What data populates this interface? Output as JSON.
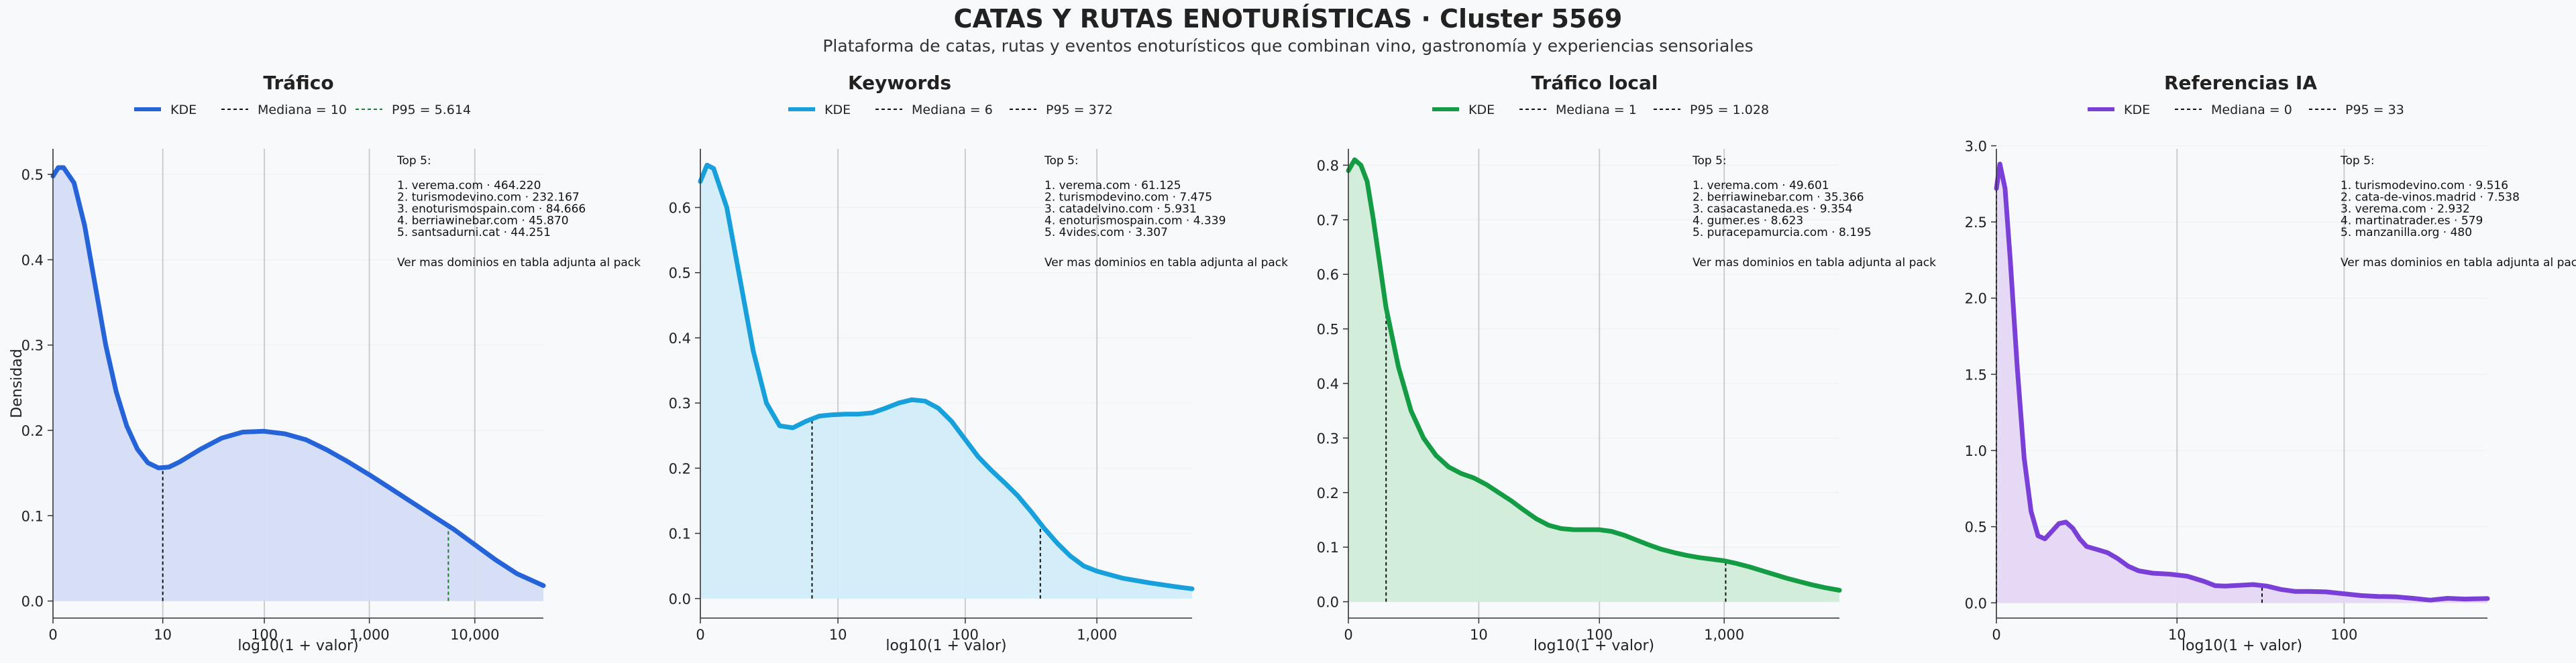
{
  "page": {
    "title": "CATAS Y RUTAS ENOTURÍSTICAS · Cluster 5569",
    "subtitle": "Plataforma de catas, rutas y eventos enoturísticos que combinan vino, gastronomía y experiencias sensoriales"
  },
  "shared": {
    "ylabel": "Densidad",
    "xlabel": "log10(1 + valor)",
    "kde_label": "KDE",
    "top_heading": "Top 5:",
    "top_footer": "Ver mas dominios en tabla adjunta al pack"
  },
  "chart_data": [
    {
      "type": "area",
      "title": "Tráfico",
      "color": "#2563d9",
      "fill": "#d5ddf6",
      "median_color": "#111111",
      "p95_color": "#1e7a2e",
      "legend": [
        "KDE",
        "Mediana = 10",
        "P95 = 5.614"
      ],
      "xlabel": "log10(1 + valor)",
      "ylabel": "Densidad",
      "xlim": [
        0,
        4.65
      ],
      "ylim": [
        -0.02,
        0.53
      ],
      "xticks": [
        0,
        1.041,
        2.004,
        3.0,
        4.0
      ],
      "xticklabels": [
        "0",
        "10",
        "100",
        "1,000",
        "10,000"
      ],
      "yticks": [
        0,
        0.1,
        0.2,
        0.3,
        0.4,
        0.5
      ],
      "yticklabels": [
        "0.0",
        "0.1",
        "0.2",
        "0.3",
        "0.4",
        "0.5"
      ],
      "median_x": 1.041,
      "p95_x": 3.749,
      "kde": [
        [
          0,
          0.498
        ],
        [
          0.05,
          0.508
        ],
        [
          0.1,
          0.508
        ],
        [
          0.2,
          0.49
        ],
        [
          0.3,
          0.44
        ],
        [
          0.4,
          0.37
        ],
        [
          0.5,
          0.3
        ],
        [
          0.6,
          0.245
        ],
        [
          0.7,
          0.205
        ],
        [
          0.8,
          0.178
        ],
        [
          0.9,
          0.162
        ],
        [
          1.0,
          0.156
        ],
        [
          1.1,
          0.157
        ],
        [
          1.2,
          0.163
        ],
        [
          1.4,
          0.178
        ],
        [
          1.6,
          0.191
        ],
        [
          1.8,
          0.198
        ],
        [
          2.0,
          0.199
        ],
        [
          2.2,
          0.196
        ],
        [
          2.4,
          0.189
        ],
        [
          2.6,
          0.177
        ],
        [
          2.8,
          0.163
        ],
        [
          3.0,
          0.148
        ],
        [
          3.2,
          0.132
        ],
        [
          3.4,
          0.116
        ],
        [
          3.6,
          0.1
        ],
        [
          3.8,
          0.084
        ],
        [
          4.0,
          0.066
        ],
        [
          4.2,
          0.048
        ],
        [
          4.4,
          0.032
        ],
        [
          4.65,
          0.018
        ]
      ],
      "top5": [
        "1. verema.com · 464.220",
        "2. turismodevino.com · 232.167",
        "3. enoturismospain.com · 84.666",
        "4. berriawinebar.com · 45.870",
        "5. santsadurni.cat · 44.251"
      ],
      "grid": "vertical"
    },
    {
      "type": "area",
      "title": "Keywords",
      "color": "#17a0db",
      "fill": "#d2edf9",
      "median_color": "#111111",
      "p95_color": "#111111",
      "legend": [
        "KDE",
        "Mediana = 6",
        "P95 = 372"
      ],
      "xlabel": "log10(1 + valor)",
      "ylabel": "",
      "xlim": [
        0,
        3.72
      ],
      "ylim": [
        -0.03,
        0.69
      ],
      "xticks": [
        0,
        1.041,
        2.004,
        3.0
      ],
      "xticklabels": [
        "0",
        "10",
        "100",
        "1,000"
      ],
      "yticks": [
        0,
        0.1,
        0.2,
        0.3,
        0.4,
        0.5,
        0.6
      ],
      "yticklabels": [
        "0.0",
        "0.1",
        "0.2",
        "0.3",
        "0.4",
        "0.5",
        "0.6"
      ],
      "median_x": 0.845,
      "p95_x": 2.572,
      "kde": [
        [
          0,
          0.64
        ],
        [
          0.05,
          0.665
        ],
        [
          0.1,
          0.66
        ],
        [
          0.2,
          0.6
        ],
        [
          0.3,
          0.49
        ],
        [
          0.4,
          0.38
        ],
        [
          0.5,
          0.3
        ],
        [
          0.6,
          0.265
        ],
        [
          0.7,
          0.262
        ],
        [
          0.8,
          0.272
        ],
        [
          0.9,
          0.28
        ],
        [
          1.0,
          0.282
        ],
        [
          1.1,
          0.283
        ],
        [
          1.2,
          0.283
        ],
        [
          1.3,
          0.285
        ],
        [
          1.4,
          0.292
        ],
        [
          1.5,
          0.3
        ],
        [
          1.6,
          0.305
        ],
        [
          1.7,
          0.303
        ],
        [
          1.8,
          0.292
        ],
        [
          1.9,
          0.272
        ],
        [
          2.0,
          0.245
        ],
        [
          2.1,
          0.218
        ],
        [
          2.2,
          0.197
        ],
        [
          2.3,
          0.178
        ],
        [
          2.4,
          0.158
        ],
        [
          2.5,
          0.134
        ],
        [
          2.6,
          0.108
        ],
        [
          2.7,
          0.085
        ],
        [
          2.8,
          0.065
        ],
        [
          2.9,
          0.05
        ],
        [
          3.0,
          0.042
        ],
        [
          3.2,
          0.031
        ],
        [
          3.4,
          0.024
        ],
        [
          3.6,
          0.018
        ],
        [
          3.72,
          0.015
        ]
      ],
      "top5": [
        "1. verema.com · 61.125",
        "2. turismodevino.com · 7.475",
        "3. catadelvino.com · 5.931",
        "4. enoturismospain.com · 4.339",
        "5. 4vides.com · 3.307"
      ],
      "grid": "vertical"
    },
    {
      "type": "area",
      "title": "Tráfico local",
      "color": "#149c44",
      "fill": "#d1ecd9",
      "median_color": "#111111",
      "p95_color": "#111111",
      "legend": [
        "KDE",
        "Mediana = 1",
        "P95 = 1.028"
      ],
      "xlabel": "log10(1 + valor)",
      "ylabel": "",
      "xlim": [
        0,
        3.92
      ],
      "ylim": [
        -0.03,
        0.83
      ],
      "xticks": [
        0,
        1.041,
        2.004,
        3.0
      ],
      "xticklabels": [
        "0",
        "10",
        "100",
        "1,000"
      ],
      "yticks": [
        0,
        0.1,
        0.2,
        0.3,
        0.4,
        0.5,
        0.6,
        0.7,
        0.8
      ],
      "yticklabels": [
        "0.0",
        "0.1",
        "0.2",
        "0.3",
        "0.4",
        "0.5",
        "0.6",
        "0.7",
        "0.8"
      ],
      "median_x": 0.301,
      "p95_x": 3.012,
      "kde": [
        [
          0,
          0.79
        ],
        [
          0.05,
          0.81
        ],
        [
          0.1,
          0.8
        ],
        [
          0.15,
          0.77
        ],
        [
          0.2,
          0.7
        ],
        [
          0.25,
          0.62
        ],
        [
          0.3,
          0.54
        ],
        [
          0.4,
          0.43
        ],
        [
          0.5,
          0.35
        ],
        [
          0.6,
          0.3
        ],
        [
          0.7,
          0.268
        ],
        [
          0.8,
          0.247
        ],
        [
          0.9,
          0.235
        ],
        [
          1.0,
          0.227
        ],
        [
          1.1,
          0.215
        ],
        [
          1.2,
          0.2
        ],
        [
          1.3,
          0.185
        ],
        [
          1.4,
          0.168
        ],
        [
          1.5,
          0.152
        ],
        [
          1.6,
          0.14
        ],
        [
          1.7,
          0.134
        ],
        [
          1.8,
          0.132
        ],
        [
          1.9,
          0.132
        ],
        [
          2.0,
          0.132
        ],
        [
          2.1,
          0.129
        ],
        [
          2.2,
          0.122
        ],
        [
          2.3,
          0.113
        ],
        [
          2.4,
          0.104
        ],
        [
          2.5,
          0.096
        ],
        [
          2.6,
          0.09
        ],
        [
          2.7,
          0.085
        ],
        [
          2.8,
          0.081
        ],
        [
          2.9,
          0.078
        ],
        [
          3.0,
          0.075
        ],
        [
          3.1,
          0.07
        ],
        [
          3.2,
          0.064
        ],
        [
          3.3,
          0.057
        ],
        [
          3.4,
          0.05
        ],
        [
          3.5,
          0.043
        ],
        [
          3.6,
          0.037
        ],
        [
          3.7,
          0.031
        ],
        [
          3.8,
          0.026
        ],
        [
          3.92,
          0.021
        ]
      ],
      "top5": [
        "1. verema.com · 49.601",
        "2. berriawinebar.com · 35.366",
        "3. casacastaneda.es · 9.354",
        "4. gumer.es · 8.623",
        "5. puracepamurcia.com · 8.195"
      ],
      "grid": "vertical"
    },
    {
      "type": "area",
      "title": "Referencias IA",
      "color": "#7a3fd6",
      "fill": "#e4d7f6",
      "median_color": "#111111",
      "p95_color": "#111111",
      "legend": [
        "KDE",
        "Mediana = 0",
        "P95 = 33"
      ],
      "xlabel": "log10(1 + valor)",
      "ylabel": "",
      "xlim": [
        0,
        2.83
      ],
      "ylim": [
        -0.1,
        2.98
      ],
      "xticks": [
        0,
        1.041,
        2.004
      ],
      "xticklabels": [
        "0",
        "10",
        "100"
      ],
      "yticks": [
        0,
        0.5,
        1.0,
        1.5,
        2.0,
        2.5,
        3.0
      ],
      "yticklabels": [
        "0.0",
        "0.5",
        "1.0",
        "1.5",
        "2.0",
        "2.5",
        "3.0"
      ],
      "median_x": 0.0,
      "p95_x": 1.531,
      "kde": [
        [
          0,
          2.72
        ],
        [
          0.02,
          2.88
        ],
        [
          0.05,
          2.72
        ],
        [
          0.08,
          2.25
        ],
        [
          0.12,
          1.55
        ],
        [
          0.16,
          0.95
        ],
        [
          0.2,
          0.6
        ],
        [
          0.24,
          0.44
        ],
        [
          0.28,
          0.42
        ],
        [
          0.32,
          0.47
        ],
        [
          0.36,
          0.52
        ],
        [
          0.4,
          0.53
        ],
        [
          0.44,
          0.49
        ],
        [
          0.48,
          0.42
        ],
        [
          0.52,
          0.37
        ],
        [
          0.58,
          0.35
        ],
        [
          0.64,
          0.33
        ],
        [
          0.7,
          0.29
        ],
        [
          0.76,
          0.24
        ],
        [
          0.82,
          0.21
        ],
        [
          0.9,
          0.195
        ],
        [
          1.0,
          0.188
        ],
        [
          1.1,
          0.175
        ],
        [
          1.2,
          0.14
        ],
        [
          1.26,
          0.113
        ],
        [
          1.32,
          0.11
        ],
        [
          1.4,
          0.115
        ],
        [
          1.48,
          0.12
        ],
        [
          1.56,
          0.11
        ],
        [
          1.64,
          0.088
        ],
        [
          1.72,
          0.075
        ],
        [
          1.8,
          0.075
        ],
        [
          1.9,
          0.072
        ],
        [
          2.0,
          0.06
        ],
        [
          2.1,
          0.048
        ],
        [
          2.2,
          0.042
        ],
        [
          2.3,
          0.04
        ],
        [
          2.4,
          0.03
        ],
        [
          2.5,
          0.018
        ],
        [
          2.6,
          0.03
        ],
        [
          2.7,
          0.025
        ],
        [
          2.83,
          0.028
        ]
      ],
      "top5": [
        "1. turismodevino.com · 9.516",
        "2. cata-de-vinos.madrid · 7.538",
        "3. verema.com · 2.932",
        "4. martinatrader.es · 579",
        "5. manzanilla.org · 480"
      ],
      "grid": "vertical"
    }
  ]
}
